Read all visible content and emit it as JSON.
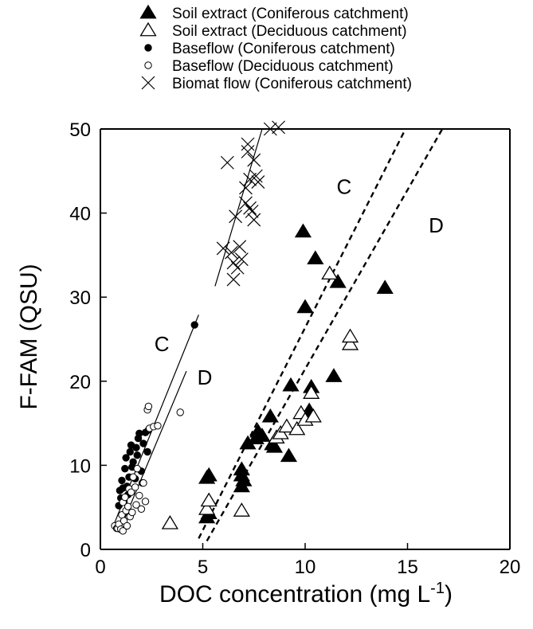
{
  "chart_data": {
    "type": "scatter",
    "xlabel": "DOC concentration (mg L",
    "xlabel_sup": "-1",
    "xlabel_close": ")",
    "ylabel": "F-FAM (QSU)",
    "xlim": [
      0,
      20
    ],
    "ylim": [
      0,
      50
    ],
    "xticks": [
      0,
      5,
      10,
      15,
      20
    ],
    "yticks": [
      0,
      10,
      20,
      30,
      40,
      50
    ],
    "grid": false,
    "legend_position": "top",
    "series": [
      {
        "name": "Soil extract (Coniferous catchment)",
        "marker": "triangle-filled",
        "points": [
          [
            5.2,
            8.5
          ],
          [
            5.3,
            8.8
          ],
          [
            5.2,
            3.8
          ],
          [
            5.3,
            4.3
          ],
          [
            6.9,
            9.5
          ],
          [
            6.9,
            8.8
          ],
          [
            6.9,
            7.5
          ],
          [
            7.0,
            8.2
          ],
          [
            7.2,
            12.6
          ],
          [
            7.6,
            13.2
          ],
          [
            7.7,
            14.0
          ],
          [
            7.8,
            13.6
          ],
          [
            7.9,
            13.5
          ],
          [
            8.3,
            15.8
          ],
          [
            8.4,
            12.5
          ],
          [
            8.5,
            12.2
          ],
          [
            9.2,
            11.1
          ],
          [
            9.3,
            19.5
          ],
          [
            9.9,
            37.8
          ],
          [
            10.0,
            28.8
          ],
          [
            10.2,
            16.5
          ],
          [
            10.3,
            19.3
          ],
          [
            10.5,
            34.6
          ],
          [
            11.4,
            20.6
          ],
          [
            11.6,
            31.8
          ],
          [
            13.9,
            31.1
          ]
        ]
      },
      {
        "name": "Soil extract (Deciduous catchment)",
        "marker": "triangle-open",
        "points": [
          [
            3.4,
            3.1
          ],
          [
            5.2,
            4.8
          ],
          [
            5.3,
            5.8
          ],
          [
            6.9,
            4.6
          ],
          [
            8.6,
            13.3
          ],
          [
            8.8,
            13.8
          ],
          [
            9.1,
            14.6
          ],
          [
            9.6,
            14.3
          ],
          [
            9.8,
            16.2
          ],
          [
            10.0,
            15.4
          ],
          [
            10.3,
            18.6
          ],
          [
            10.4,
            15.8
          ],
          [
            11.2,
            32.8
          ],
          [
            12.2,
            24.4
          ],
          [
            12.2,
            25.3
          ]
        ]
      },
      {
        "name": "Baseflow (Coniferous catchment)",
        "marker": "circle-filled",
        "points": [
          [
            0.9,
            5.2
          ],
          [
            0.95,
            7.0
          ],
          [
            1.0,
            6.1
          ],
          [
            1.05,
            8.2
          ],
          [
            1.1,
            7.3
          ],
          [
            1.15,
            5.7
          ],
          [
            1.2,
            9.6
          ],
          [
            1.25,
            10.9
          ],
          [
            1.3,
            7.5
          ],
          [
            1.35,
            6.5
          ],
          [
            1.4,
            8.6
          ],
          [
            1.45,
            11.6
          ],
          [
            1.5,
            12.4
          ],
          [
            1.55,
            9.8
          ],
          [
            1.6,
            10.4
          ],
          [
            1.7,
            8.4
          ],
          [
            1.75,
            12.1
          ],
          [
            1.8,
            11.2
          ],
          [
            1.85,
            13.2
          ],
          [
            1.9,
            13.8
          ],
          [
            2.0,
            9.3
          ],
          [
            2.05,
            7.9
          ],
          [
            2.1,
            12.6
          ],
          [
            2.2,
            13.9
          ],
          [
            2.3,
            11.6
          ],
          [
            2.35,
            14.2
          ],
          [
            4.6,
            26.7
          ]
        ]
      },
      {
        "name": "Baseflow (Deciduous catchment)",
        "marker": "circle-open",
        "points": [
          [
            0.7,
            2.8
          ],
          [
            0.8,
            2.5
          ],
          [
            0.85,
            2.5
          ],
          [
            0.9,
            3.0
          ],
          [
            1.0,
            2.4
          ],
          [
            1.05,
            4.1
          ],
          [
            1.1,
            5.6
          ],
          [
            1.1,
            2.2
          ],
          [
            1.15,
            3.4
          ],
          [
            1.2,
            6.2
          ],
          [
            1.25,
            4.6
          ],
          [
            1.3,
            2.8
          ],
          [
            1.35,
            5.1
          ],
          [
            1.4,
            7.2
          ],
          [
            1.45,
            3.9
          ],
          [
            1.5,
            6.8
          ],
          [
            1.55,
            4.4
          ],
          [
            1.6,
            8.6
          ],
          [
            1.7,
            7.4
          ],
          [
            1.75,
            5.3
          ],
          [
            1.8,
            9.6
          ],
          [
            1.9,
            6.4
          ],
          [
            2.0,
            4.8
          ],
          [
            2.1,
            7.9
          ],
          [
            2.2,
            5.7
          ],
          [
            2.3,
            16.6
          ],
          [
            2.35,
            17.0
          ],
          [
            2.4,
            14.4
          ],
          [
            2.6,
            14.6
          ],
          [
            2.8,
            14.7
          ],
          [
            3.9,
            16.3
          ]
        ]
      },
      {
        "name": "Biomat flow (Coniferous catchment)",
        "marker": "x",
        "points": [
          [
            6.0,
            35.8
          ],
          [
            6.2,
            46.0
          ],
          [
            6.4,
            35.3
          ],
          [
            6.5,
            34.1
          ],
          [
            6.5,
            32.1
          ],
          [
            6.6,
            39.6
          ],
          [
            6.7,
            33.5
          ],
          [
            6.8,
            36.0
          ],
          [
            6.9,
            34.5
          ],
          [
            7.1,
            43.0
          ],
          [
            7.1,
            41.2
          ],
          [
            7.2,
            48.2
          ],
          [
            7.2,
            47.3
          ],
          [
            7.3,
            40.6
          ],
          [
            7.3,
            44.0
          ],
          [
            7.4,
            40.2
          ],
          [
            7.5,
            46.3
          ],
          [
            7.5,
            39.2
          ],
          [
            7.6,
            44.4
          ],
          [
            7.7,
            43.7
          ],
          [
            8.3,
            50.0
          ],
          [
            8.7,
            50.2
          ]
        ]
      }
    ],
    "fit_lines": [
      {
        "label": "",
        "style": "solid",
        "from": [
          5.6,
          31.3
        ],
        "to": [
          7.9,
          50.0
        ]
      },
      {
        "label": "C",
        "style": "dashed",
        "from": [
          4.8,
          1.3
        ],
        "to": [
          14.9,
          50.0
        ]
      },
      {
        "label": "D",
        "style": "dashed",
        "from": [
          5.2,
          1.0
        ],
        "to": [
          16.7,
          50.0
        ]
      },
      {
        "label": "C",
        "style": "solid",
        "from": [
          0.6,
          2.6
        ],
        "to": [
          4.8,
          27.9
        ]
      },
      {
        "label": "D",
        "style": "solid",
        "from": [
          0.9,
          2.0
        ],
        "to": [
          4.2,
          21.2
        ]
      }
    ],
    "annotations": [
      {
        "text": "C",
        "x": 11.9,
        "y": 42.3
      },
      {
        "text": "D",
        "x": 16.4,
        "y": 37.7
      },
      {
        "text": "C",
        "x": 3.0,
        "y": 23.6
      },
      {
        "text": "D",
        "x": 5.1,
        "y": 19.6
      }
    ]
  }
}
